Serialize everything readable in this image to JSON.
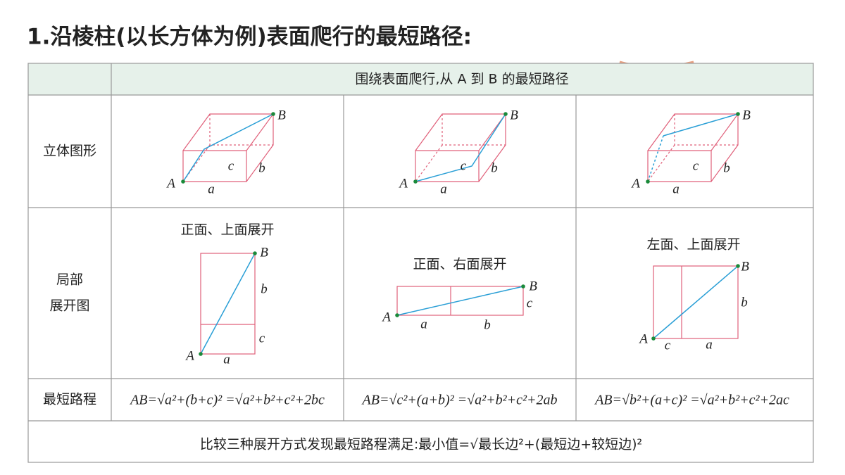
{
  "title": "1.沿棱柱(以长方体为例)表面爬行的最短路径:",
  "table": {
    "header": "围绕表面爬行,从 A 到 B 的最短路径",
    "row_labels": [
      "立体图形",
      [
        "局部",
        "展开图"
      ],
      "最短路程"
    ],
    "columns": [
      {
        "solid_labels": [
          "A",
          "B",
          "a",
          "b",
          "c"
        ],
        "unfold_title": "正面、上面展开",
        "unfold_labels": [
          "A",
          "B",
          "a",
          "b",
          "c"
        ],
        "formula": "AB=√a²+(b+c)² =√a²+b²+c²+2bc"
      },
      {
        "solid_labels": [
          "A",
          "B",
          "a",
          "b",
          "c"
        ],
        "unfold_title": "正面、右面展开",
        "unfold_labels": [
          "A",
          "B",
          "a",
          "b",
          "c"
        ],
        "formula": "AB=√c²+(a+b)² =√a²+b²+c²+2ab"
      },
      {
        "solid_labels": [
          "A",
          "B",
          "a",
          "b",
          "c"
        ],
        "unfold_title": "左面、上面展开",
        "unfold_labels": [
          "A",
          "B",
          "a",
          "b",
          "c"
        ],
        "formula": "AB=√b²+(a+c)² =√a²+b²+c²+2ac"
      }
    ],
    "conclusion": "比较三种展开方式发现最短路程满足:最小值=√最长边²+(最短边+较短边)²"
  }
}
